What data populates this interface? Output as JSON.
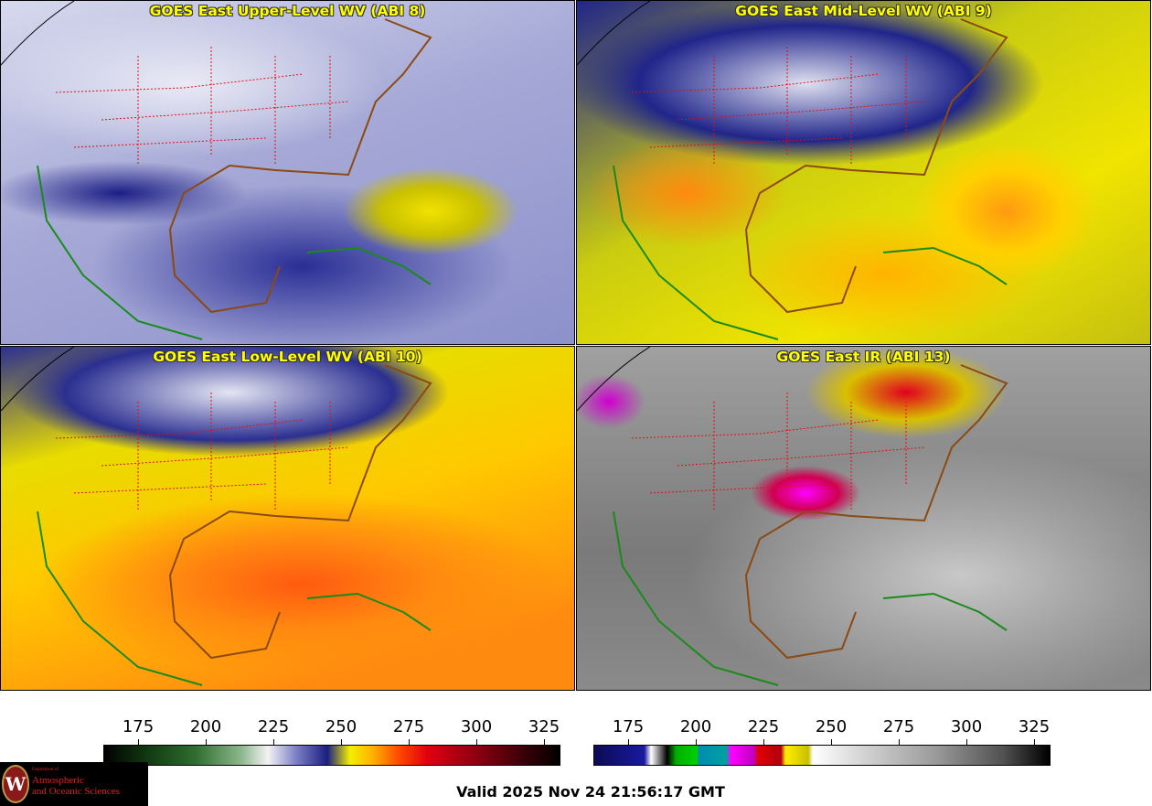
{
  "panels": [
    {
      "id": "upper-level-wv",
      "title": "GOES East Upper-Level WV (ABI 8)"
    },
    {
      "id": "mid-level-wv",
      "title": "GOES East Mid-Level WV (ABI 9)"
    },
    {
      "id": "low-level-wv",
      "title": "GOES East Low-Level WV (ABI 10)"
    },
    {
      "id": "ir",
      "title": "GOES East IR (ABI 13)"
    }
  ],
  "colorbars": {
    "wv": {
      "ticks": [
        "175",
        "200",
        "225",
        "250",
        "275",
        "300",
        "325"
      ]
    },
    "ir": {
      "ticks": [
        "175",
        "200",
        "225",
        "250",
        "275",
        "300",
        "325"
      ]
    }
  },
  "colors": {
    "title_text": "#ffff00",
    "state_borders": "#e01010",
    "coastlines_us": "#8b4a12",
    "coastlines_other": "#1a8a1a"
  },
  "logo": {
    "dept_small": "Department of",
    "line1": "Atmospheric",
    "line2": "and Oceanic Sciences",
    "seal_letter": "W"
  },
  "footer": {
    "valid_text": "Valid 2025 Nov 24 21:56:17 GMT"
  }
}
